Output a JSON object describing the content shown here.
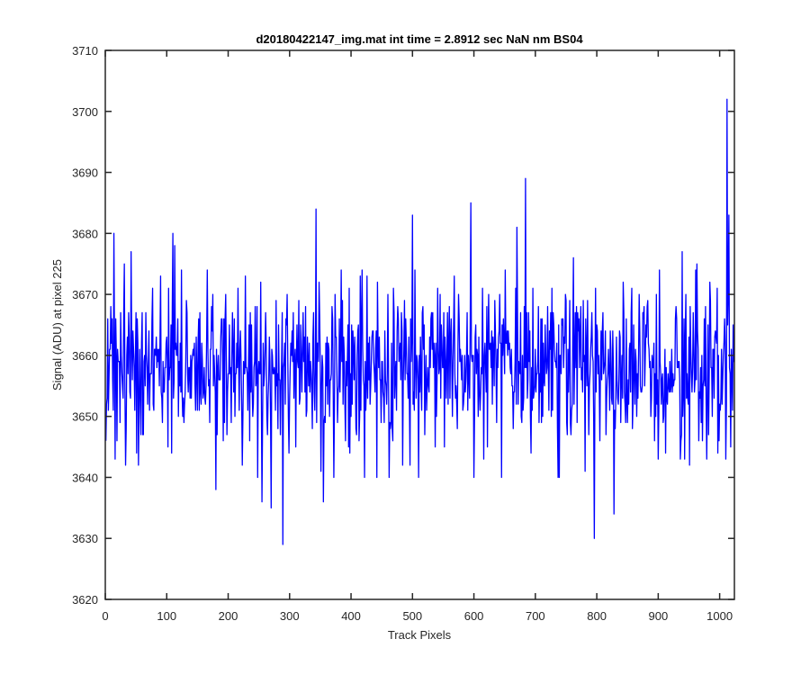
{
  "chart_data": {
    "type": "line",
    "title": "d20180422147_img.mat int time = 2.8912 sec  NaN nm BS04",
    "xlabel": "Track Pixels",
    "ylabel": "Signal (ADU) at pixel 225",
    "xlim": [
      0,
      1024
    ],
    "ylim": [
      3620,
      3710
    ],
    "xticks": [
      0,
      100,
      200,
      300,
      400,
      500,
      600,
      700,
      800,
      900,
      1000
    ],
    "yticks": [
      3620,
      3630,
      3640,
      3650,
      3660,
      3670,
      3680,
      3690,
      3700,
      3710
    ],
    "grid": false,
    "line_color": "#0000ff",
    "series": [
      {
        "color": "#0000ff",
        "noise_mean": 3658,
        "noise_sd": 7,
        "x_start": 1,
        "x_end": 1024,
        "notable_points": [
          {
            "x": 14,
            "y": 3680
          },
          {
            "x": 16,
            "y": 3643
          },
          {
            "x": 54,
            "y": 3642
          },
          {
            "x": 110,
            "y": 3680
          },
          {
            "x": 180,
            "y": 3638
          },
          {
            "x": 255,
            "y": 3636
          },
          {
            "x": 270,
            "y": 3635
          },
          {
            "x": 289,
            "y": 3629
          },
          {
            "x": 343,
            "y": 3684
          },
          {
            "x": 355,
            "y": 3636
          },
          {
            "x": 500,
            "y": 3683
          },
          {
            "x": 595,
            "y": 3685
          },
          {
            "x": 670,
            "y": 3681
          },
          {
            "x": 684,
            "y": 3689
          },
          {
            "x": 796,
            "y": 3630
          },
          {
            "x": 828,
            "y": 3634
          },
          {
            "x": 1010,
            "y": 3643
          },
          {
            "x": 1012,
            "y": 3702
          },
          {
            "x": 1015,
            "y": 3683
          },
          {
            "x": 1018,
            "y": 3645
          }
        ]
      }
    ]
  }
}
